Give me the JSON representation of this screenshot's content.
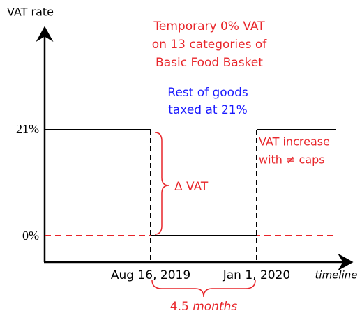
{
  "axes": {
    "y_label": "VAT rate",
    "x_label": "timeline",
    "y_levels": [
      "21%",
      "0%"
    ],
    "x_dates": [
      "Aug 16, 2019",
      "Jan 1, 2020"
    ]
  },
  "notes": {
    "temporary": [
      "Temporary 0% VAT",
      "on 13 categories of",
      "Basic Food Basket"
    ],
    "rest": [
      "Rest of goods",
      "taxed at 21%"
    ],
    "increase": [
      "VAT increase",
      "with ≠ caps"
    ],
    "delta": "Δ VAT",
    "duration": {
      "number": "4.5",
      "unit": "months"
    }
  }
}
